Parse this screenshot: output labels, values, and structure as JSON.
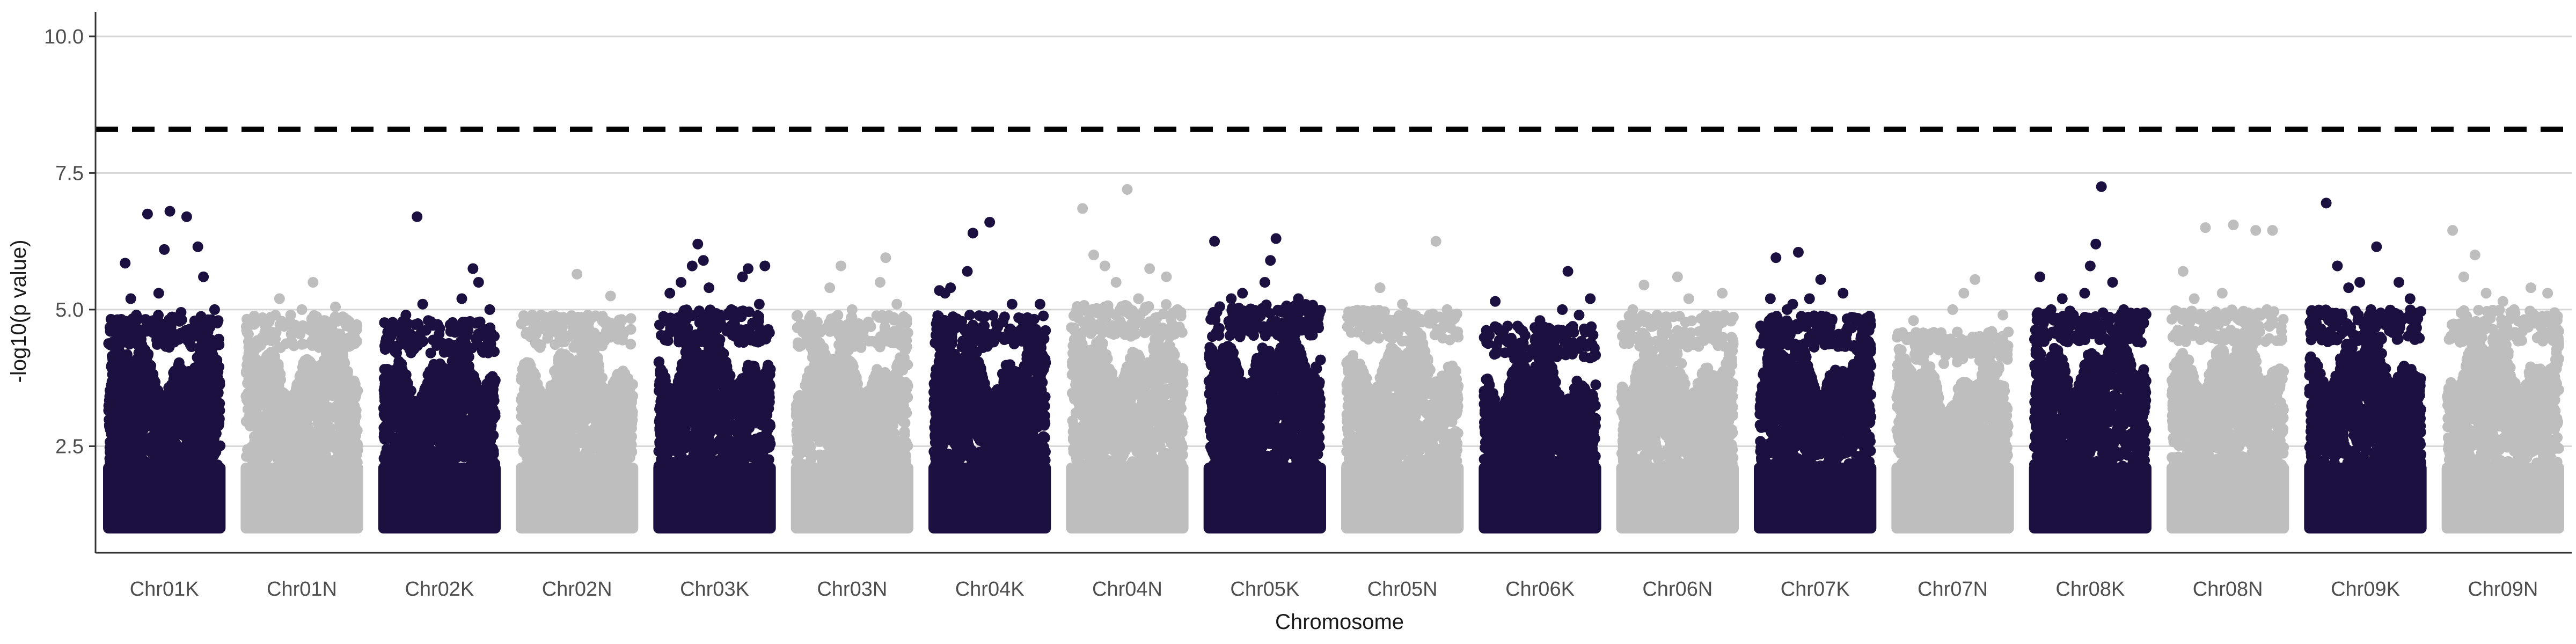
{
  "chart_data": {
    "type": "scatter",
    "title": "",
    "xlabel": "Chromosome",
    "ylabel": "-log10(p value)",
    "ylim": [
      0.55,
      10.45
    ],
    "y_ticks": [
      2.5,
      5.0,
      7.5,
      10.0
    ],
    "y_tick_labels": [
      "2.5",
      "5.0",
      "7.5",
      "10.0"
    ],
    "grid": "horizontal major gridlines",
    "legend": "none",
    "threshold_line": {
      "y": 8.3,
      "style": "dashed",
      "color": "#000000"
    },
    "point_min_y": 1.0,
    "colors": {
      "odd": "#1c1040",
      "even": "#bebebe"
    },
    "categories": [
      "Chr01K",
      "Chr01N",
      "Chr02K",
      "Chr02N",
      "Chr03K",
      "Chr03N",
      "Chr04K",
      "Chr04N",
      "Chr05K",
      "Chr05N",
      "Chr06K",
      "Chr06N",
      "Chr07K",
      "Chr07N",
      "Chr08K",
      "Chr08N",
      "Chr09K",
      "Chr09N"
    ],
    "series": [
      {
        "name": "",
        "color": "#1c1040",
        "base": 4.0,
        "points": [
          [
            0.15,
            5.85
          ],
          [
            0.2,
            5.2
          ],
          [
            0.25,
            4.9
          ],
          [
            0.35,
            6.75
          ],
          [
            0.4,
            4.8
          ],
          [
            0.45,
            5.3
          ],
          [
            0.5,
            6.1
          ],
          [
            0.55,
            6.8
          ],
          [
            0.6,
            4.85
          ],
          [
            0.65,
            4.95
          ],
          [
            0.7,
            6.7
          ],
          [
            0.8,
            6.15
          ],
          [
            0.85,
            5.6
          ],
          [
            0.95,
            5.0
          ]
        ]
      },
      {
        "name": "",
        "color": "#bebebe",
        "base": 4.0,
        "points": [
          [
            0.2,
            4.6
          ],
          [
            0.3,
            5.2
          ],
          [
            0.4,
            4.9
          ],
          [
            0.5,
            5.0
          ],
          [
            0.6,
            5.5
          ],
          [
            0.7,
            4.8
          ],
          [
            0.8,
            5.05
          ],
          [
            0.9,
            4.7
          ]
        ]
      },
      {
        "name": "",
        "color": "#1c1040",
        "base": 3.9,
        "points": [
          [
            0.3,
            6.7
          ],
          [
            0.35,
            5.1
          ],
          [
            0.4,
            4.8
          ],
          [
            0.2,
            4.9
          ],
          [
            0.6,
            4.6
          ],
          [
            0.7,
            5.2
          ],
          [
            0.8,
            5.75
          ],
          [
            0.85,
            5.5
          ],
          [
            0.95,
            5.0
          ]
        ]
      },
      {
        "name": "",
        "color": "#bebebe",
        "base": 4.0,
        "points": [
          [
            0.1,
            4.9
          ],
          [
            0.3,
            4.6
          ],
          [
            0.5,
            5.65
          ],
          [
            0.7,
            4.5
          ],
          [
            0.8,
            5.25
          ],
          [
            0.9,
            4.8
          ]
        ]
      },
      {
        "name": "",
        "color": "#1c1040",
        "base": 4.1,
        "points": [
          [
            0.1,
            5.3
          ],
          [
            0.2,
            5.5
          ],
          [
            0.3,
            5.8
          ],
          [
            0.35,
            6.2
          ],
          [
            0.4,
            5.9
          ],
          [
            0.45,
            5.4
          ],
          [
            0.55,
            4.9
          ],
          [
            0.65,
            5.0
          ],
          [
            0.75,
            5.6
          ],
          [
            0.8,
            5.75
          ],
          [
            0.9,
            5.1
          ],
          [
            0.95,
            5.8
          ]
        ]
      },
      {
        "name": "",
        "color": "#bebebe",
        "base": 4.0,
        "points": [
          [
            0.3,
            5.4
          ],
          [
            0.4,
            5.8
          ],
          [
            0.5,
            5.0
          ],
          [
            0.6,
            4.6
          ],
          [
            0.75,
            5.5
          ],
          [
            0.8,
            5.95
          ],
          [
            0.9,
            5.1
          ]
        ]
      },
      {
        "name": "",
        "color": "#1c1040",
        "base": 4.0,
        "points": [
          [
            0.05,
            5.35
          ],
          [
            0.1,
            5.3
          ],
          [
            0.15,
            5.4
          ],
          [
            0.2,
            4.7
          ],
          [
            0.3,
            5.7
          ],
          [
            0.35,
            6.4
          ],
          [
            0.5,
            6.6
          ],
          [
            0.6,
            4.5
          ],
          [
            0.7,
            5.1
          ],
          [
            0.85,
            4.7
          ],
          [
            0.95,
            5.1
          ]
        ]
      },
      {
        "name": "",
        "color": "#bebebe",
        "base": 4.2,
        "points": [
          [
            0.1,
            6.85
          ],
          [
            0.2,
            6.0
          ],
          [
            0.3,
            5.8
          ],
          [
            0.4,
            5.5
          ],
          [
            0.5,
            7.2
          ],
          [
            0.6,
            5.2
          ],
          [
            0.7,
            5.75
          ],
          [
            0.85,
            5.6
          ],
          [
            0.95,
            5.0
          ]
        ]
      },
      {
        "name": "",
        "color": "#1c1040",
        "base": 4.2,
        "points": [
          [
            0.05,
            6.25
          ],
          [
            0.2,
            5.2
          ],
          [
            0.3,
            5.3
          ],
          [
            0.4,
            4.8
          ],
          [
            0.5,
            5.5
          ],
          [
            0.55,
            5.9
          ],
          [
            0.6,
            6.3
          ],
          [
            0.7,
            5.0
          ],
          [
            0.8,
            5.2
          ],
          [
            0.9,
            4.9
          ]
        ]
      },
      {
        "name": "",
        "color": "#bebebe",
        "base": 4.1,
        "points": [
          [
            0.1,
            4.8
          ],
          [
            0.3,
            5.4
          ],
          [
            0.5,
            5.1
          ],
          [
            0.6,
            4.9
          ],
          [
            0.8,
            6.25
          ],
          [
            0.9,
            5.0
          ]
        ]
      },
      {
        "name": "",
        "color": "#1c1040",
        "base": 3.8,
        "points": [
          [
            0.1,
            5.15
          ],
          [
            0.3,
            4.7
          ],
          [
            0.5,
            4.8
          ],
          [
            0.7,
            5.0
          ],
          [
            0.75,
            5.7
          ],
          [
            0.85,
            4.9
          ],
          [
            0.95,
            5.2
          ]
        ]
      },
      {
        "name": "",
        "color": "#bebebe",
        "base": 4.0,
        "points": [
          [
            0.1,
            5.0
          ],
          [
            0.2,
            5.45
          ],
          [
            0.4,
            4.8
          ],
          [
            0.5,
            5.6
          ],
          [
            0.6,
            5.2
          ],
          [
            0.75,
            4.9
          ],
          [
            0.9,
            5.3
          ]
        ]
      },
      {
        "name": "",
        "color": "#1c1040",
        "base": 4.0,
        "points": [
          [
            0.1,
            5.2
          ],
          [
            0.15,
            5.95
          ],
          [
            0.25,
            5.0
          ],
          [
            0.3,
            5.1
          ],
          [
            0.35,
            6.05
          ],
          [
            0.45,
            5.2
          ],
          [
            0.55,
            5.55
          ],
          [
            0.65,
            4.8
          ],
          [
            0.75,
            5.3
          ],
          [
            0.9,
            4.7
          ]
        ]
      },
      {
        "name": "",
        "color": "#bebebe",
        "base": 3.7,
        "points": [
          [
            0.15,
            4.8
          ],
          [
            0.3,
            4.4
          ],
          [
            0.5,
            5.0
          ],
          [
            0.6,
            5.3
          ],
          [
            0.7,
            5.55
          ],
          [
            0.85,
            4.6
          ],
          [
            0.95,
            4.9
          ]
        ]
      },
      {
        "name": "",
        "color": "#1c1040",
        "base": 4.1,
        "points": [
          [
            0.05,
            5.6
          ],
          [
            0.15,
            5.0
          ],
          [
            0.25,
            5.2
          ],
          [
            0.35,
            4.9
          ],
          [
            0.45,
            5.3
          ],
          [
            0.5,
            5.8
          ],
          [
            0.55,
            6.2
          ],
          [
            0.6,
            7.25
          ],
          [
            0.7,
            5.5
          ],
          [
            0.8,
            5.0
          ],
          [
            0.9,
            4.8
          ]
        ]
      },
      {
        "name": "",
        "color": "#bebebe",
        "base": 4.1,
        "points": [
          [
            0.1,
            5.7
          ],
          [
            0.2,
            5.2
          ],
          [
            0.3,
            6.5
          ],
          [
            0.45,
            5.3
          ],
          [
            0.55,
            6.55
          ],
          [
            0.75,
            6.45
          ],
          [
            0.85,
            5.0
          ],
          [
            0.9,
            6.45
          ]
        ]
      },
      {
        "name": "",
        "color": "#1c1040",
        "base": 4.1,
        "points": [
          [
            0.1,
            4.9
          ],
          [
            0.15,
            6.95
          ],
          [
            0.25,
            5.8
          ],
          [
            0.35,
            5.4
          ],
          [
            0.45,
            5.5
          ],
          [
            0.55,
            5.0
          ],
          [
            0.6,
            6.15
          ],
          [
            0.7,
            4.9
          ],
          [
            0.8,
            5.5
          ],
          [
            0.9,
            5.2
          ]
        ]
      },
      {
        "name": "",
        "color": "#bebebe",
        "base": 4.1,
        "points": [
          [
            0.05,
            6.45
          ],
          [
            0.15,
            5.6
          ],
          [
            0.25,
            6.0
          ],
          [
            0.35,
            5.3
          ],
          [
            0.5,
            5.15
          ],
          [
            0.6,
            5.0
          ],
          [
            0.75,
            5.4
          ],
          [
            0.9,
            5.3
          ]
        ]
      }
    ]
  }
}
